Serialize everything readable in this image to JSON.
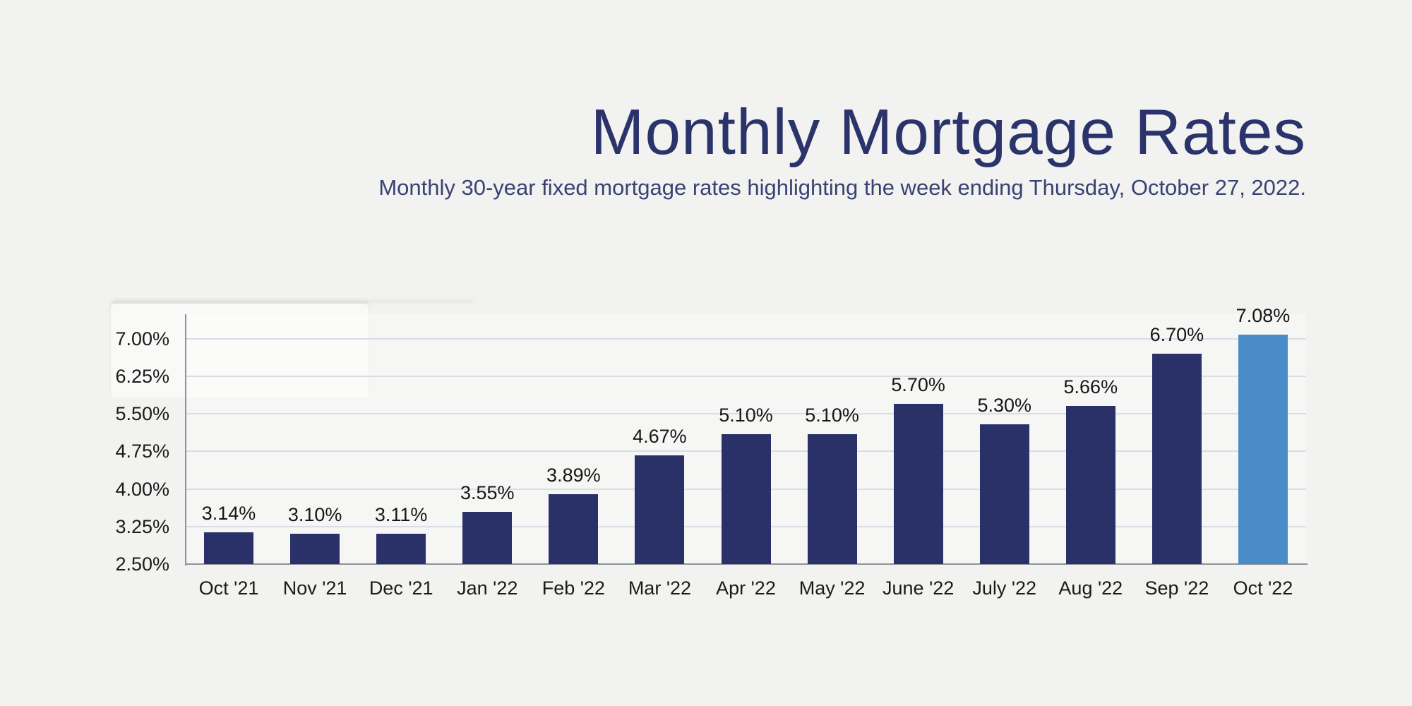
{
  "header": {
    "title": "Monthly Mortgage Rates",
    "subtitle": "Monthly 30-year fixed mortgage rates highlighting the week ending Thursday, October 27, 2022."
  },
  "chart_data": {
    "type": "bar",
    "title": "Monthly Mortgage Rates",
    "subtitle": "Monthly 30-year fixed mortgage rates highlighting the week ending Thursday, October 27, 2022.",
    "categories": [
      "Oct '21",
      "Nov '21",
      "Dec '21",
      "Jan '22",
      "Feb '22",
      "Mar '22",
      "Apr '22",
      "May '22",
      "June '22",
      "July '22",
      "Aug '22",
      "Sep '22",
      "Oct '22"
    ],
    "values": [
      3.14,
      3.1,
      3.11,
      3.55,
      3.89,
      4.67,
      5.1,
      5.1,
      5.7,
      5.3,
      5.66,
      6.7,
      7.08
    ],
    "value_labels": [
      "3.14%",
      "3.10%",
      "3.11%",
      "3.55%",
      "3.89%",
      "4.67%",
      "5.10%",
      "5.10%",
      "5.70%",
      "5.30%",
      "5.66%",
      "6.70%",
      "7.08%"
    ],
    "y_ticks": [
      "7.00%",
      "6.25%",
      "5.50%",
      "4.75%",
      "4.00%",
      "3.25%",
      "2.50%"
    ],
    "ylim": [
      2.5,
      7.45
    ],
    "xlabel": "",
    "ylabel": "",
    "grid": "horizontal",
    "legend": "none",
    "highlight_index": 12,
    "colors": {
      "bar": "#2A3169",
      "highlight_bar": "#4A8CC7",
      "background": "#F2F2F0",
      "gridline": "#D7DEE8",
      "axis": "#8F9399",
      "title": "#2B336B",
      "subtitle": "#3A4273",
      "label": "#1A1A1A"
    }
  }
}
